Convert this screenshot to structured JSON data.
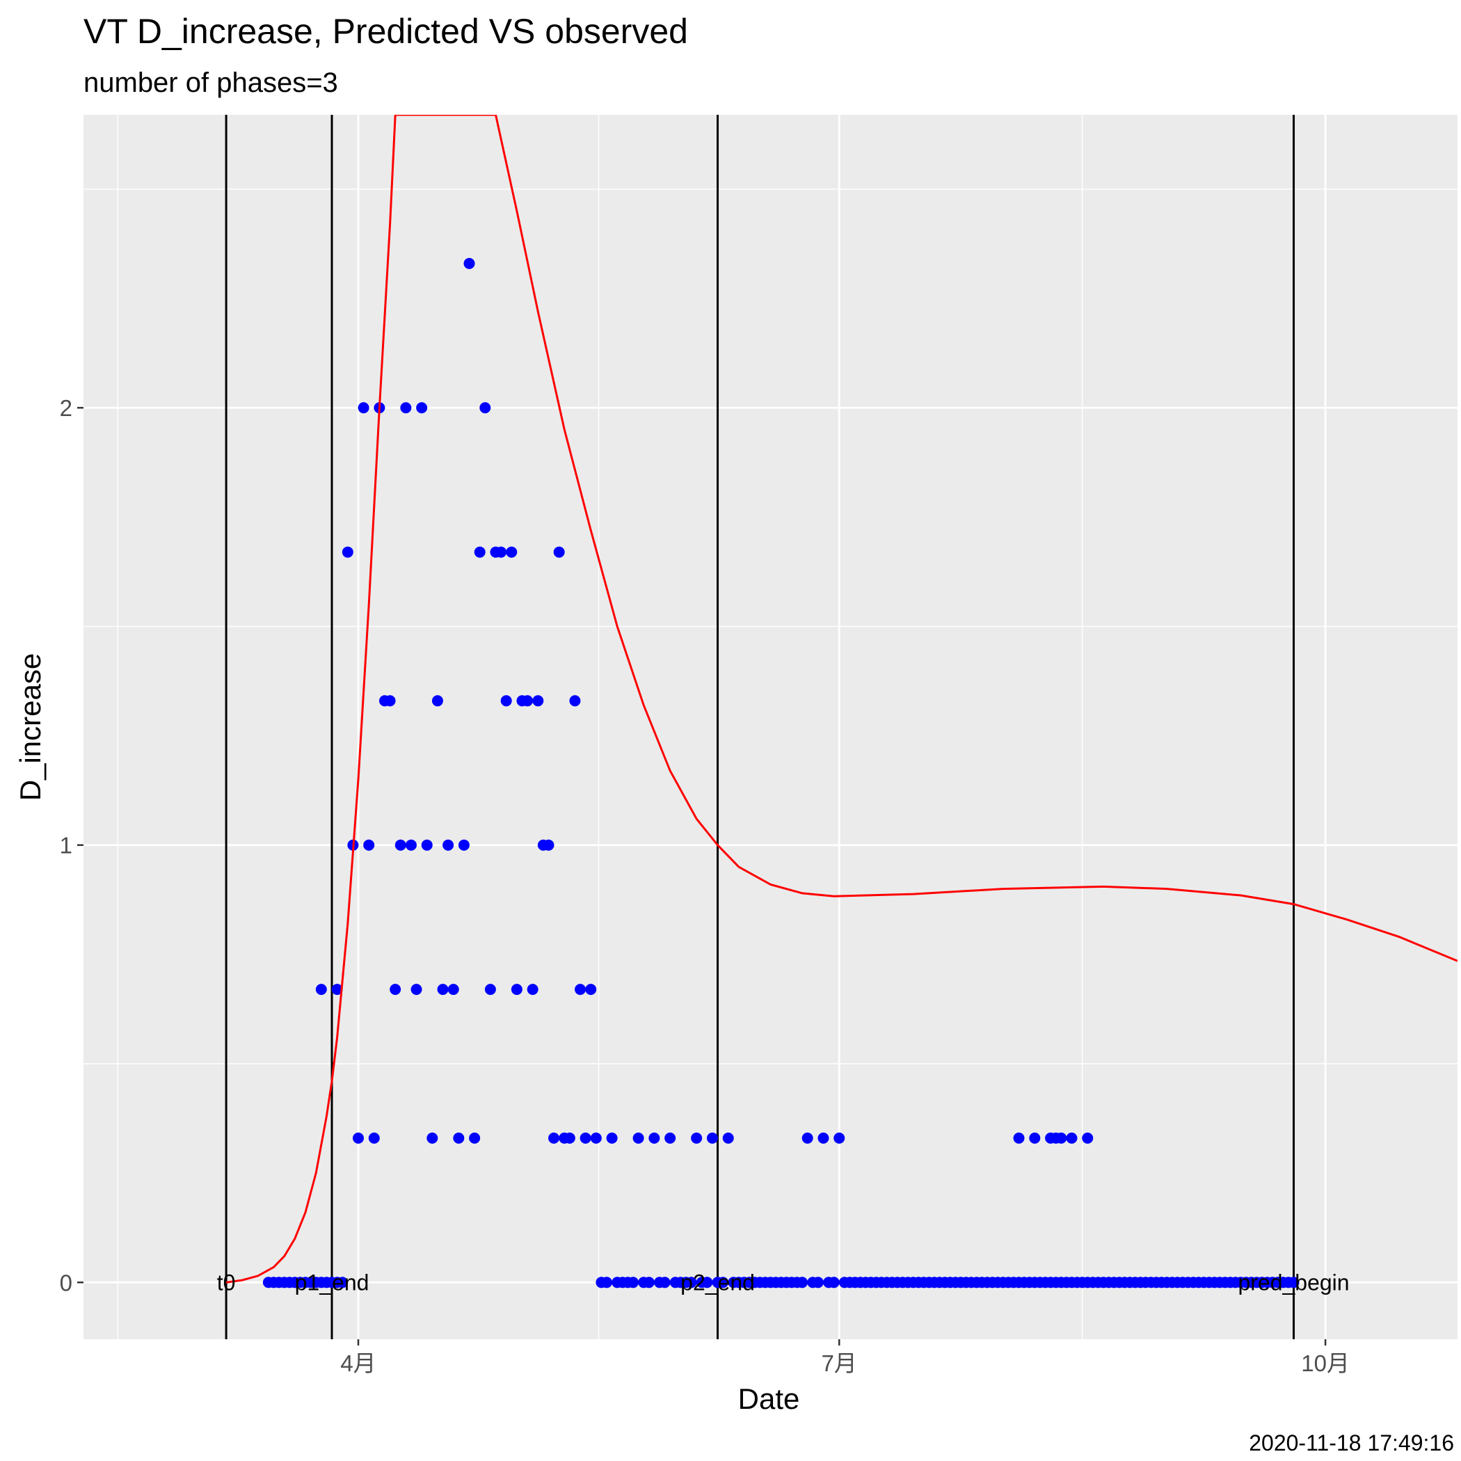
{
  "chart_data": {
    "type": "scatter",
    "title": "VT D_increase, Predicted VS observed",
    "subtitle": "number of phases=3",
    "xlabel": "Date",
    "ylabel": "D_increase",
    "caption": "2020-11-18 17:49:16",
    "x_domain": [
      "2020-02-09",
      "2020-10-26"
    ],
    "ylim": [
      -0.13,
      2.67
    ],
    "x_ticks": [
      {
        "date": "2020-04-01",
        "label": "4月"
      },
      {
        "date": "2020-07-01",
        "label": "7月"
      },
      {
        "date": "2020-10-01",
        "label": "10月"
      }
    ],
    "y_ticks": [
      {
        "value": 0,
        "label": "0"
      },
      {
        "value": 1,
        "label": "1"
      },
      {
        "value": 2,
        "label": "2"
      }
    ],
    "y_minor_ticks": [
      0.5,
      1.5,
      2.5
    ],
    "grid": true,
    "colors": {
      "panel": "#ebebeb",
      "grid": "#ffffff",
      "observed": "#0000ff",
      "predicted": "#ff0000",
      "vline": "#000000"
    },
    "vlines": [
      {
        "date": "2020-03-07",
        "label": "t0"
      },
      {
        "date": "2020-03-27",
        "label": "p1_end"
      },
      {
        "date": "2020-06-08",
        "label": "p2_end"
      },
      {
        "date": "2020-09-25",
        "label": "pred_begin"
      }
    ],
    "series": [
      {
        "kind": "points",
        "points": [
          [
            "2020-03-15",
            0
          ],
          [
            "2020-03-16",
            0
          ],
          [
            "2020-03-17",
            0
          ],
          [
            "2020-03-18",
            0
          ],
          [
            "2020-03-19",
            0
          ],
          [
            "2020-03-20",
            0
          ],
          [
            "2020-03-21",
            0
          ],
          [
            "2020-03-22",
            0
          ],
          [
            "2020-03-23",
            0
          ],
          [
            "2020-03-24",
            0
          ],
          [
            "2020-03-25",
            0
          ],
          [
            "2020-03-26",
            0
          ],
          [
            "2020-03-27",
            0
          ],
          [
            "2020-03-28",
            0
          ],
          [
            "2020-03-29",
            0
          ],
          [
            "2020-03-25",
            0.67
          ],
          [
            "2020-03-28",
            0.67
          ],
          [
            "2020-03-30",
            1.67
          ],
          [
            "2020-03-31",
            1
          ],
          [
            "2020-04-01",
            0.33
          ],
          [
            "2020-04-02",
            2
          ],
          [
            "2020-04-03",
            1
          ],
          [
            "2020-04-04",
            0.33
          ],
          [
            "2020-04-05",
            2
          ],
          [
            "2020-04-06",
            1.33
          ],
          [
            "2020-04-07",
            1.33
          ],
          [
            "2020-04-08",
            0.67
          ],
          [
            "2020-04-09",
            1
          ],
          [
            "2020-04-10",
            2
          ],
          [
            "2020-04-11",
            1
          ],
          [
            "2020-04-12",
            0.67
          ],
          [
            "2020-04-13",
            2
          ],
          [
            "2020-04-14",
            1
          ],
          [
            "2020-04-15",
            0.33
          ],
          [
            "2020-04-16",
            1.33
          ],
          [
            "2020-04-17",
            0.67
          ],
          [
            "2020-04-18",
            1
          ],
          [
            "2020-04-19",
            0.67
          ],
          [
            "2020-04-20",
            0.33
          ],
          [
            "2020-04-21",
            1
          ],
          [
            "2020-04-22",
            2.33
          ],
          [
            "2020-04-23",
            0.33
          ],
          [
            "2020-04-24",
            1.67
          ],
          [
            "2020-04-25",
            2
          ],
          [
            "2020-04-26",
            0.67
          ],
          [
            "2020-04-27",
            1.67
          ],
          [
            "2020-04-28",
            1.67
          ],
          [
            "2020-04-29",
            1.33
          ],
          [
            "2020-04-30",
            1.67
          ],
          [
            "2020-05-01",
            0.67
          ],
          [
            "2020-05-02",
            1.33
          ],
          [
            "2020-05-03",
            1.33
          ],
          [
            "2020-05-04",
            0.67
          ],
          [
            "2020-05-05",
            1.33
          ],
          [
            "2020-05-06",
            1
          ],
          [
            "2020-05-07",
            1
          ],
          [
            "2020-05-08",
            0.33
          ],
          [
            "2020-05-09",
            1.67
          ],
          [
            "2020-05-10",
            0.33
          ],
          [
            "2020-05-11",
            0.33
          ],
          [
            "2020-05-12",
            1.33
          ],
          [
            "2020-05-13",
            0.67
          ],
          [
            "2020-05-14",
            0.33
          ],
          [
            "2020-05-15",
            0.67
          ],
          [
            "2020-05-16",
            0.33
          ],
          [
            "2020-05-17",
            0
          ],
          [
            "2020-05-18",
            0
          ],
          [
            "2020-05-19",
            0.33
          ],
          [
            "2020-05-20",
            0
          ],
          [
            "2020-05-21",
            0
          ],
          [
            "2020-05-22",
            0
          ],
          [
            "2020-05-23",
            0
          ],
          [
            "2020-05-24",
            0.33
          ],
          [
            "2020-05-25",
            0
          ],
          [
            "2020-05-26",
            0
          ],
          [
            "2020-05-27",
            0.33
          ],
          [
            "2020-05-28",
            0
          ],
          [
            "2020-05-29",
            0
          ],
          [
            "2020-05-30",
            0.33
          ],
          [
            "2020-05-31",
            0
          ],
          [
            "2020-06-01",
            0
          ],
          [
            "2020-06-02",
            0
          ],
          [
            "2020-06-03",
            0
          ],
          [
            "2020-06-04",
            0.33
          ],
          [
            "2020-06-05",
            0
          ],
          [
            "2020-06-06",
            0
          ],
          [
            "2020-06-07",
            0.33
          ],
          [
            "2020-06-08",
            0
          ],
          [
            "2020-06-09",
            0
          ],
          [
            "2020-06-10",
            0.33
          ],
          [
            "2020-06-11",
            0
          ],
          [
            "2020-06-12",
            0
          ],
          [
            "2020-06-13",
            0
          ],
          [
            "2020-06-14",
            0
          ],
          [
            "2020-06-15",
            0
          ],
          [
            "2020-06-16",
            0
          ],
          [
            "2020-06-17",
            0
          ],
          [
            "2020-06-18",
            0
          ],
          [
            "2020-06-19",
            0
          ],
          [
            "2020-06-20",
            0
          ],
          [
            "2020-06-21",
            0
          ],
          [
            "2020-06-22",
            0
          ],
          [
            "2020-06-23",
            0
          ],
          [
            "2020-06-24",
            0
          ],
          [
            "2020-06-25",
            0.33
          ],
          [
            "2020-06-26",
            0
          ],
          [
            "2020-06-27",
            0
          ],
          [
            "2020-06-28",
            0.33
          ],
          [
            "2020-06-29",
            0
          ],
          [
            "2020-06-30",
            0
          ],
          [
            "2020-07-01",
            0.33
          ],
          [
            "2020-07-02",
            0
          ],
          [
            "2020-07-03",
            0
          ],
          [
            "2020-07-04",
            0
          ],
          [
            "2020-07-05",
            0
          ],
          [
            "2020-07-06",
            0
          ],
          [
            "2020-07-07",
            0
          ],
          [
            "2020-07-08",
            0
          ],
          [
            "2020-07-09",
            0
          ],
          [
            "2020-07-10",
            0
          ],
          [
            "2020-07-11",
            0
          ],
          [
            "2020-07-12",
            0
          ],
          [
            "2020-07-13",
            0
          ],
          [
            "2020-07-14",
            0
          ],
          [
            "2020-07-15",
            0
          ],
          [
            "2020-07-16",
            0
          ],
          [
            "2020-07-17",
            0
          ],
          [
            "2020-07-18",
            0
          ],
          [
            "2020-07-19",
            0
          ],
          [
            "2020-07-20",
            0
          ],
          [
            "2020-07-21",
            0
          ],
          [
            "2020-07-22",
            0
          ],
          [
            "2020-07-23",
            0
          ],
          [
            "2020-07-24",
            0
          ],
          [
            "2020-07-25",
            0
          ],
          [
            "2020-07-26",
            0
          ],
          [
            "2020-07-27",
            0
          ],
          [
            "2020-07-28",
            0
          ],
          [
            "2020-07-29",
            0
          ],
          [
            "2020-07-30",
            0
          ],
          [
            "2020-07-31",
            0
          ],
          [
            "2020-08-01",
            0
          ],
          [
            "2020-08-02",
            0
          ],
          [
            "2020-08-03",
            0
          ],
          [
            "2020-08-04",
            0
          ],
          [
            "2020-08-05",
            0
          ],
          [
            "2020-08-06",
            0
          ],
          [
            "2020-08-07",
            0
          ],
          [
            "2020-08-08",
            0
          ],
          [
            "2020-08-09",
            0
          ],
          [
            "2020-08-10",
            0
          ],
          [
            "2020-08-11",
            0
          ],
          [
            "2020-08-12",
            0
          ],
          [
            "2020-08-13",
            0
          ],
          [
            "2020-08-14",
            0
          ],
          [
            "2020-08-15",
            0
          ],
          [
            "2020-08-16",
            0
          ],
          [
            "2020-08-17",
            0
          ],
          [
            "2020-08-18",
            0
          ],
          [
            "2020-08-19",
            0
          ],
          [
            "2020-08-20",
            0
          ],
          [
            "2020-08-21",
            0
          ],
          [
            "2020-08-22",
            0
          ],
          [
            "2020-08-23",
            0
          ],
          [
            "2020-08-24",
            0
          ],
          [
            "2020-08-25",
            0
          ],
          [
            "2020-08-26",
            0
          ],
          [
            "2020-08-27",
            0
          ],
          [
            "2020-08-28",
            0
          ],
          [
            "2020-08-29",
            0
          ],
          [
            "2020-08-30",
            0
          ],
          [
            "2020-08-31",
            0
          ],
          [
            "2020-09-01",
            0
          ],
          [
            "2020-09-02",
            0
          ],
          [
            "2020-09-03",
            0
          ],
          [
            "2020-09-04",
            0
          ],
          [
            "2020-09-05",
            0
          ],
          [
            "2020-09-06",
            0
          ],
          [
            "2020-09-07",
            0
          ],
          [
            "2020-09-08",
            0
          ],
          [
            "2020-09-09",
            0
          ],
          [
            "2020-09-10",
            0
          ],
          [
            "2020-09-11",
            0
          ],
          [
            "2020-09-12",
            0
          ],
          [
            "2020-09-13",
            0
          ],
          [
            "2020-09-14",
            0
          ],
          [
            "2020-09-15",
            0
          ],
          [
            "2020-09-16",
            0
          ],
          [
            "2020-09-17",
            0
          ],
          [
            "2020-09-18",
            0
          ],
          [
            "2020-09-19",
            0
          ],
          [
            "2020-09-20",
            0
          ],
          [
            "2020-09-21",
            0
          ],
          [
            "2020-09-22",
            0
          ],
          [
            "2020-09-23",
            0
          ],
          [
            "2020-09-24",
            0
          ],
          [
            "2020-09-25",
            0
          ],
          [
            "2020-08-04",
            0.33
          ],
          [
            "2020-08-07",
            0.33
          ],
          [
            "2020-08-10",
            0.33
          ],
          [
            "2020-08-11",
            0.33
          ],
          [
            "2020-08-12",
            0.33
          ],
          [
            "2020-08-14",
            0.33
          ],
          [
            "2020-08-17",
            0.33
          ]
        ]
      },
      {
        "kind": "line",
        "points": [
          [
            "2020-03-07",
            0
          ],
          [
            "2020-03-10",
            0.005
          ],
          [
            "2020-03-13",
            0.015
          ],
          [
            "2020-03-16",
            0.035
          ],
          [
            "2020-03-18",
            0.06
          ],
          [
            "2020-03-20",
            0.1
          ],
          [
            "2020-03-22",
            0.16
          ],
          [
            "2020-03-24",
            0.25
          ],
          [
            "2020-03-26",
            0.38
          ],
          [
            "2020-03-27",
            0.46
          ],
          [
            "2020-03-28",
            0.56
          ],
          [
            "2020-03-30",
            0.82
          ],
          [
            "2020-04-01",
            1.15
          ],
          [
            "2020-04-03",
            1.55
          ],
          [
            "2020-04-05",
            2.0
          ],
          [
            "2020-04-07",
            2.42
          ],
          [
            "2020-04-08",
            2.67
          ],
          [
            "2020-04-27",
            2.67
          ],
          [
            "2020-05-01",
            2.45
          ],
          [
            "2020-05-05",
            2.22
          ],
          [
            "2020-05-10",
            1.95
          ],
          [
            "2020-05-15",
            1.72
          ],
          [
            "2020-05-20",
            1.5
          ],
          [
            "2020-05-25",
            1.32
          ],
          [
            "2020-05-30",
            1.17
          ],
          [
            "2020-06-04",
            1.06
          ],
          [
            "2020-06-08",
            1.0
          ],
          [
            "2020-06-12",
            0.95
          ],
          [
            "2020-06-18",
            0.91
          ],
          [
            "2020-06-24",
            0.89
          ],
          [
            "2020-06-30",
            0.883
          ],
          [
            "2020-07-15",
            0.888
          ],
          [
            "2020-08-01",
            0.9
          ],
          [
            "2020-08-20",
            0.905
          ],
          [
            "2020-09-01",
            0.9
          ],
          [
            "2020-09-15",
            0.885
          ],
          [
            "2020-09-25",
            0.865
          ],
          [
            "2020-10-05",
            0.83
          ],
          [
            "2020-10-15",
            0.79
          ],
          [
            "2020-10-26",
            0.735
          ]
        ]
      }
    ]
  }
}
